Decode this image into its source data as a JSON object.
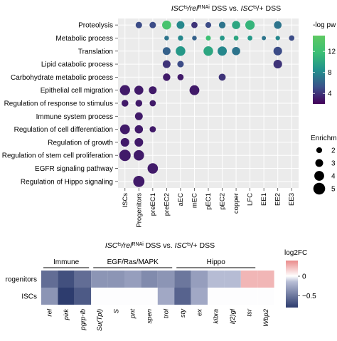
{
  "chart_data": [
    {
      "type": "scatter",
      "title_parts": [
        "ISC",
        "ts",
        "/rel",
        "RNAi",
        " DSS ",
        "vs.",
        " ISC",
        "ts",
        "/+ DSS"
      ],
      "columns": [
        "ISCs",
        "Progenitors",
        "preEC1",
        "preEC2",
        "aEC",
        "mEC",
        "pEC1",
        "pEC2",
        "copper",
        "LFC",
        "EE1",
        "EE2",
        "EE3"
      ],
      "rows": [
        "Proteolysis",
        "Metabolic process",
        "Translation",
        "Lipid catabolic process",
        "Carbohydrate metabolic process",
        "Epithelial cell migration",
        "Regulation of response to stimulus",
        "Immune system process",
        "Regulation of cell differentiation",
        "Regulation of growth",
        "Regulation of stem cell proliferation",
        "EGFR signaling pathway",
        "Regulation of Hippo signaling"
      ],
      "color_legend_title": "-log pw",
      "color_ticks": [
        4,
        8,
        12
      ],
      "color_range": [
        2,
        15
      ],
      "size_legend_title": "Enrichm",
      "size_ticks": [
        2,
        3,
        4,
        5
      ],
      "points": [
        {
          "row": 0,
          "col": 1,
          "size": 2.3,
          "nlogp": 5
        },
        {
          "row": 0,
          "col": 2,
          "size": 2.3,
          "nlogp": 5
        },
        {
          "row": 0,
          "col": 3,
          "size": 3.6,
          "nlogp": 13
        },
        {
          "row": 0,
          "col": 4,
          "size": 3.0,
          "nlogp": 8
        },
        {
          "row": 0,
          "col": 5,
          "size": 2.2,
          "nlogp": 4
        },
        {
          "row": 0,
          "col": 6,
          "size": 2.0,
          "nlogp": 5
        },
        {
          "row": 0,
          "col": 7,
          "size": 2.4,
          "nlogp": 7
        },
        {
          "row": 0,
          "col": 8,
          "size": 3.2,
          "nlogp": 10
        },
        {
          "row": 0,
          "col": 9,
          "size": 3.8,
          "nlogp": 11
        },
        {
          "row": 0,
          "col": 11,
          "size": 2.9,
          "nlogp": 7
        },
        {
          "row": 1,
          "col": 3,
          "size": 1.4,
          "nlogp": 7
        },
        {
          "row": 1,
          "col": 4,
          "size": 1.7,
          "nlogp": 8
        },
        {
          "row": 1,
          "col": 5,
          "size": 1.4,
          "nlogp": 6
        },
        {
          "row": 1,
          "col": 6,
          "size": 1.6,
          "nlogp": 12
        },
        {
          "row": 1,
          "col": 7,
          "size": 1.5,
          "nlogp": 9
        },
        {
          "row": 1,
          "col": 8,
          "size": 1.5,
          "nlogp": 10
        },
        {
          "row": 1,
          "col": 9,
          "size": 1.5,
          "nlogp": 9
        },
        {
          "row": 1,
          "col": 10,
          "size": 1.2,
          "nlogp": 7
        },
        {
          "row": 1,
          "col": 11,
          "size": 1.3,
          "nlogp": 8
        },
        {
          "row": 1,
          "col": 12,
          "size": 1.8,
          "nlogp": 5
        },
        {
          "row": 2,
          "col": 3,
          "size": 3.0,
          "nlogp": 6
        },
        {
          "row": 2,
          "col": 4,
          "size": 3.9,
          "nlogp": 9
        },
        {
          "row": 2,
          "col": 6,
          "size": 3.9,
          "nlogp": 10
        },
        {
          "row": 2,
          "col": 7,
          "size": 3.7,
          "nlogp": 8
        },
        {
          "row": 2,
          "col": 8,
          "size": 3.2,
          "nlogp": 7
        },
        {
          "row": 2,
          "col": 11,
          "size": 3.4,
          "nlogp": 5
        },
        {
          "row": 3,
          "col": 3,
          "size": 3.0,
          "nlogp": 4
        },
        {
          "row": 3,
          "col": 4,
          "size": 2.3,
          "nlogp": 5
        },
        {
          "row": 3,
          "col": 11,
          "size": 3.4,
          "nlogp": 4
        },
        {
          "row": 4,
          "col": 3,
          "size": 2.8,
          "nlogp": 3
        },
        {
          "row": 4,
          "col": 4,
          "size": 2.2,
          "nlogp": 3
        },
        {
          "row": 4,
          "col": 7,
          "size": 2.6,
          "nlogp": 4
        },
        {
          "row": 5,
          "col": 0,
          "size": 4.2,
          "nlogp": 3
        },
        {
          "row": 5,
          "col": 1,
          "size": 3.6,
          "nlogp": 3
        },
        {
          "row": 5,
          "col": 2,
          "size": 3.0,
          "nlogp": 3
        },
        {
          "row": 5,
          "col": 5,
          "size": 4.0,
          "nlogp": 3
        },
        {
          "row": 6,
          "col": 0,
          "size": 2.5,
          "nlogp": 3
        },
        {
          "row": 6,
          "col": 1,
          "size": 2.5,
          "nlogp": 3
        },
        {
          "row": 6,
          "col": 2,
          "size": 2.2,
          "nlogp": 3
        },
        {
          "row": 7,
          "col": 1,
          "size": 3.0,
          "nlogp": 3
        },
        {
          "row": 8,
          "col": 0,
          "size": 4.0,
          "nlogp": 3
        },
        {
          "row": 8,
          "col": 1,
          "size": 3.2,
          "nlogp": 3
        },
        {
          "row": 8,
          "col": 2,
          "size": 2.2,
          "nlogp": 3
        },
        {
          "row": 9,
          "col": 0,
          "size": 3.4,
          "nlogp": 3
        },
        {
          "row": 9,
          "col": 1,
          "size": 3.4,
          "nlogp": 3
        },
        {
          "row": 10,
          "col": 0,
          "size": 4.8,
          "nlogp": 3
        },
        {
          "row": 10,
          "col": 1,
          "size": 4.3,
          "nlogp": 3
        },
        {
          "row": 11,
          "col": 2,
          "size": 4.3,
          "nlogp": 3
        },
        {
          "row": 12,
          "col": 1,
          "size": 4.7,
          "nlogp": 3
        }
      ]
    },
    {
      "type": "heatmap",
      "title_parts": [
        "ISC",
        "ts",
        "/rel",
        "RNAi",
        " DSS ",
        "vs.",
        " ISC",
        "ts",
        "/+ DSS"
      ],
      "groups": [
        {
          "name": "Immune",
          "start": 0,
          "end": 2
        },
        {
          "name": "EGF/Ras/MAPK",
          "start": 3,
          "end": 7
        },
        {
          "name": "Hippo",
          "start": 8,
          "end": 12
        }
      ],
      "genes": [
        "rel",
        "pirk",
        "pgrp-lb",
        "Su(Tpl)",
        "S",
        "pnt",
        "spen",
        "trol",
        "sty",
        "ex",
        "kibra",
        "l(2)gl",
        "tsr",
        "Wbp2"
      ],
      "rows": [
        "rogenitors",
        "ISCs"
      ],
      "values": [
        [
          -0.55,
          -0.7,
          -0.55,
          -0.35,
          -0.35,
          -0.3,
          -0.4,
          -0.35,
          -0.5,
          -0.3,
          -0.15,
          -0.15,
          0.25,
          0.25
        ],
        [
          -0.35,
          -0.8,
          -0.65,
          0.0,
          0.0,
          0.0,
          0.0,
          -0.25,
          -0.6,
          -0.25,
          0.0,
          0.0,
          0.0,
          0.0
        ]
      ],
      "legend_title": "log2FC",
      "legend_ticks": [
        0,
        -0.5
      ],
      "range": [
        -0.8,
        0.4
      ]
    }
  ]
}
